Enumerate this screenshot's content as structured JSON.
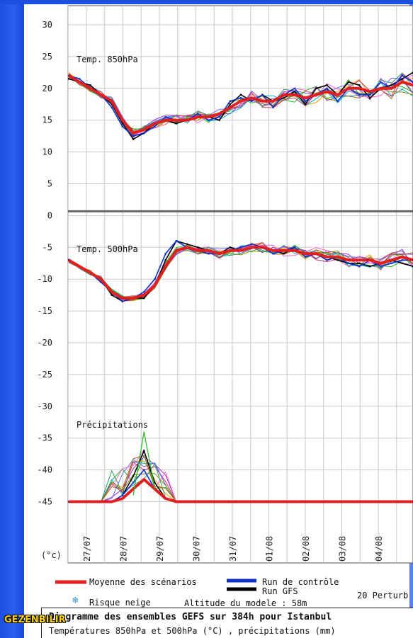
{
  "chart_data": {
    "type": "line",
    "panels": [
      {
        "title": "Temp. 850hPa",
        "series": [
          {
            "name": "Moyenne des scénarios",
            "color": "#e02020",
            "values": [
              22,
              21,
              20,
              19,
              18,
              15,
              13,
              13.5,
              14.5,
              15,
              15,
              15,
              15.5,
              15.5,
              16,
              17,
              18,
              18.5,
              18,
              18,
              19,
              19,
              18.5,
              19,
              19.5,
              19,
              20,
              20,
              19.5,
              20,
              20,
              21,
              20.5
            ]
          },
          {
            "name": "Run de contrôle",
            "color": "#1030d0",
            "values": [
              22,
              21.5,
              20,
              19,
              17,
              14,
              12.5,
              13,
              14,
              15.5,
              15,
              15,
              16,
              15,
              15.5,
              18,
              18.5,
              18,
              19,
              17,
              19,
              20,
              18,
              19,
              20,
              18,
              20,
              19,
              19,
              21,
              20,
              22,
              21
            ]
          },
          {
            "name": "Run GFS",
            "color": "#000000",
            "values": [
              21.5,
              21,
              20.5,
              19,
              17.5,
              14.5,
              12,
              13,
              14.5,
              15,
              14.5,
              15,
              15.5,
              15.5,
              15,
              17.5,
              19,
              18,
              19,
              18,
              18.5,
              19.5,
              17.5,
              20,
              20.5,
              19,
              21,
              20.5,
              18.5,
              20,
              20.5,
              21.5,
              22.5
            ]
          }
        ]
      },
      {
        "title": "Temp. 500hPa",
        "series": [
          {
            "name": "Moyenne des scénarios",
            "color": "#e02020",
            "values": [
              -7,
              -8,
              -9,
              -10,
              -12,
              -13,
              -13,
              -12.5,
              -11,
              -8,
              -5.5,
              -5,
              -5.5,
              -5.5,
              -6,
              -5.5,
              -5.5,
              -5,
              -5,
              -5.5,
              -5.5,
              -5.5,
              -6,
              -6,
              -6.5,
              -6.5,
              -7,
              -7,
              -7,
              -7.5,
              -7,
              -6.5,
              -7
            ]
          },
          {
            "name": "Run de contrôle",
            "color": "#1030d0",
            "values": [
              -7,
              -8,
              -9,
              -10.5,
              -12,
              -13.5,
              -13,
              -12,
              -10,
              -6,
              -4,
              -5,
              -5.5,
              -6,
              -6,
              -5.5,
              -5,
              -4.5,
              -5,
              -6,
              -5.5,
              -5,
              -6.5,
              -6,
              -7,
              -6.5,
              -7.5,
              -8,
              -7,
              -8,
              -7.5,
              -7,
              -7
            ]
          },
          {
            "name": "Run GFS",
            "color": "#000000",
            "values": [
              -7,
              -8,
              -9,
              -10,
              -12.5,
              -13.5,
              -13,
              -13,
              -11,
              -7,
              -4,
              -4.5,
              -5,
              -5.5,
              -6,
              -5,
              -5.5,
              -5,
              -5,
              -5.5,
              -6,
              -5,
              -6.5,
              -6,
              -6.5,
              -7,
              -7.5,
              -7.5,
              -8,
              -7.5,
              -7,
              -7.5,
              -8
            ]
          }
        ]
      },
      {
        "title": "Précipitations",
        "series": [
          {
            "name": "Moyenne des scénarios",
            "color": "#e02020",
            "values": [
              -45,
              -45,
              -45,
              -45,
              -45,
              -44.5,
              -43,
              -41.5,
              -43,
              -44.5,
              -45,
              -45,
              -45,
              -45,
              -45,
              -45,
              -45,
              -45,
              -45,
              -45,
              -45,
              -45,
              -45,
              -45,
              -45,
              -45,
              -45,
              -45,
              -45,
              -45,
              -45,
              -45,
              -45
            ]
          },
          {
            "name": "Run de contrôle",
            "color": "#1030d0",
            "values": [
              -45,
              -45,
              -45,
              -45,
              -45,
              -44,
              -42,
              -40,
              -43,
              -44.5,
              -45,
              -45,
              -45,
              -45,
              -45,
              -45,
              -45,
              -45,
              -45,
              -45,
              -45,
              -45,
              -45,
              -45,
              -45,
              -45,
              -45,
              -45,
              -45,
              -45,
              -45,
              -45,
              -45
            ]
          },
          {
            "name": "Run GFS",
            "color": "#000000",
            "values": [
              -45,
              -45,
              -45,
              -45,
              -45,
              -44,
              -41,
              -37,
              -42,
              -44.5,
              -45,
              -45,
              -45,
              -45,
              -45,
              -45,
              -45,
              -45,
              -45,
              -45,
              -45,
              -45,
              -45,
              -45,
              -45,
              -45,
              -45,
              -45,
              -45,
              -45,
              -45,
              -45,
              -45
            ]
          }
        ]
      }
    ],
    "ylabel": "(°c)",
    "ylim": [
      -50,
      30
    ],
    "yticks": [
      30,
      25,
      20,
      15,
      10,
      5,
      0,
      -5,
      -10,
      -15,
      -20,
      -25,
      -30,
      -35,
      -40,
      -45
    ],
    "xticks": [
      "27/07",
      "28/07",
      "29/07",
      "30/07",
      "31/07",
      "01/08",
      "02/08",
      "03/08",
      "04/08"
    ],
    "precip_peak_max": -34,
    "grid": true
  },
  "legend": {
    "mean_label": "Moyenne des scénarios",
    "control_label": "Run de contrôle",
    "gfs_label": "Run GFS",
    "perturb_label": "20 Perturb",
    "snow_label": "Risque neige",
    "altitude_label": "Altitude du modele : 58m",
    "snow_icon": "snowflake-icon"
  },
  "caption": {
    "title": "Diagramme des ensembles GEFS sur 384h pour Istanbul",
    "subtitle": "Températures 850hPa et 500hPa (°C) , précipitations (mm)"
  },
  "watermark": "GEZENBILIR"
}
